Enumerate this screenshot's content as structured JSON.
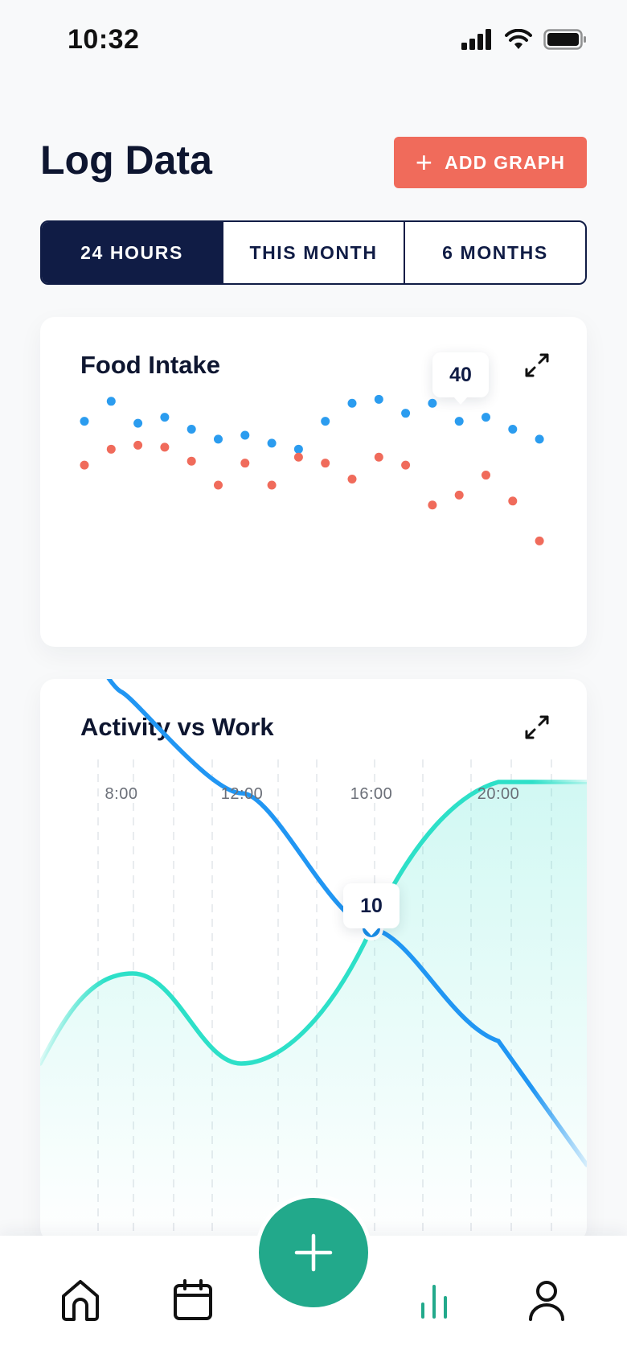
{
  "status": {
    "time": "10:32"
  },
  "header": {
    "title": "Log Data",
    "add_graph_label": "ADD GRAPH"
  },
  "tabs": [
    {
      "label": "24 HOURS",
      "active": true
    },
    {
      "label": "THIS MONTH",
      "active": false
    },
    {
      "label": "6 MONTHS",
      "active": false
    }
  ],
  "food_card": {
    "title": "Food Intake",
    "tooltip_value": "40"
  },
  "activity_card": {
    "title": "Activity vs Work",
    "time_labels": [
      "8:00",
      "12:00",
      "16:00",
      "20:00"
    ],
    "tooltip_value": "10"
  },
  "colors": {
    "navy": "#101c45",
    "coral": "#f06b5b",
    "blue": "#2196f3",
    "teal": "#2de0c8",
    "fab_green": "#22a98b"
  },
  "icons": {
    "expand": "expand-arrows-icon",
    "home": "home-icon",
    "calendar": "calendar-icon",
    "stats": "bar-chart-icon",
    "profile": "user-icon",
    "fab": "plus-icon"
  },
  "chart_data": [
    {
      "type": "scatter",
      "title": "Food Intake",
      "series": [
        {
          "values": [
            80,
            90,
            79,
            82,
            76,
            71,
            73,
            69,
            66,
            80,
            89,
            91,
            84,
            89,
            80,
            82,
            76,
            71
          ]
        },
        {
          "values": [
            58,
            66,
            68,
            67,
            60,
            48,
            59,
            48,
            62,
            59,
            51,
            62,
            58,
            38,
            43,
            53,
            40,
            20
          ]
        }
      ],
      "ylim": [
        0,
        100
      ]
    },
    {
      "type": "line",
      "title": "Activity vs Work",
      "categories": [
        "8:00",
        "12:00",
        "16:00",
        "20:00"
      ],
      "series": [
        {
          "values": [
            31,
            22,
            10,
            0
          ]
        },
        {
          "values": [
            3,
            -2,
            10,
            23
          ]
        }
      ]
    }
  ]
}
